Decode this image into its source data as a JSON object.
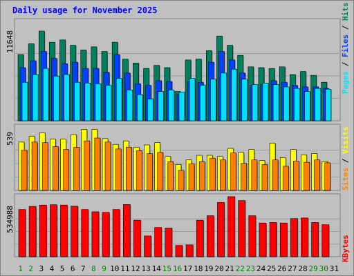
{
  "title": "Daily usage for November 2025",
  "colors": {
    "hits": "#00805c",
    "files": "#0040ff",
    "pages": "#00e0ff",
    "visits": "#ffff00",
    "sites": "#ff8000",
    "kbytes": "#ff0000",
    "day_normal": "#008040",
    "day_weekend": "#008000",
    "day_text": "#000000",
    "title": "#0000ff"
  },
  "chart_data": [
    {
      "type": "bar",
      "panel": "hits-files-pages",
      "y_max_label": "11648",
      "ylim": [
        0,
        11648
      ],
      "legend": {
        "pages": "Pages",
        "files": "Files",
        "hits": "Hits",
        "sep": " / "
      },
      "categories": [
        "1",
        "2",
        "3",
        "4",
        "5",
        "6",
        "7",
        "8",
        "9",
        "10",
        "11",
        "12",
        "13",
        "14",
        "15",
        "16",
        "17",
        "18",
        "19",
        "20",
        "21",
        "22",
        "23",
        "24",
        "25",
        "26",
        "27",
        "28",
        "29",
        "30"
      ],
      "series": [
        {
          "name": "Hits",
          "values": [
            8600,
            10000,
            11648,
            10200,
            10500,
            9800,
            9200,
            9600,
            9000,
            10200,
            8000,
            7500,
            6800,
            7200,
            6900,
            3800,
            7900,
            8000,
            9100,
            11000,
            9800,
            8500,
            7000,
            6900,
            6800,
            7000,
            6000,
            6400,
            5900,
            5000
          ]
        },
        {
          "name": "Files",
          "values": [
            6900,
            7800,
            9000,
            8100,
            7400,
            7600,
            6800,
            6800,
            6300,
            8600,
            6200,
            4800,
            4600,
            5200,
            5100,
            3400,
            5100,
            5000,
            7600,
            9000,
            7900,
            6200,
            4600,
            4700,
            5200,
            5000,
            4600,
            4400,
            4400,
            4200
          ]
        },
        {
          "name": "Pages",
          "values": [
            5000,
            6000,
            6800,
            5800,
            6000,
            5000,
            4900,
            4800,
            4600,
            5500,
            4000,
            3400,
            2800,
            3800,
            4000,
            3700,
            5500,
            4600,
            5400,
            6200,
            6700,
            5400,
            4700,
            4900,
            4700,
            4400,
            4200,
            3800,
            4200,
            4100
          ]
        }
      ]
    },
    {
      "type": "bar",
      "panel": "visits-sites",
      "y_max_label": "539",
      "ylim": [
        0,
        539
      ],
      "legend": {
        "sites": "Sites",
        "visits": "Visits",
        "sep": " / "
      },
      "categories": [
        "1",
        "2",
        "3",
        "4",
        "5",
        "6",
        "7",
        "8",
        "9",
        "10",
        "11",
        "12",
        "13",
        "14",
        "15",
        "16",
        "17",
        "18",
        "19",
        "20",
        "21",
        "22",
        "23",
        "24",
        "25",
        "26",
        "27",
        "28",
        "29",
        "30"
      ],
      "series": [
        {
          "name": "Visits",
          "values": [
            420,
            470,
            500,
            445,
            445,
            485,
            530,
            530,
            450,
            400,
            430,
            375,
            395,
            415,
            295,
            225,
            265,
            305,
            305,
            295,
            365,
            330,
            355,
            260,
            410,
            285,
            355,
            310,
            320,
            250
          ]
        },
        {
          "name": "Sites",
          "values": [
            350,
            420,
            415,
            380,
            355,
            375,
            430,
            455,
            420,
            360,
            375,
            345,
            320,
            330,
            250,
            175,
            230,
            250,
            280,
            265,
            325,
            235,
            265,
            225,
            265,
            210,
            255,
            245,
            265,
            240
          ]
        }
      ]
    },
    {
      "type": "bar",
      "panel": "kbytes",
      "y_max_label": "534988",
      "ylim": [
        0,
        534988
      ],
      "legend": {
        "kbytes": "KBytes"
      },
      "categories": [
        "1",
        "2",
        "3",
        "4",
        "5",
        "6",
        "7",
        "8",
        "9",
        "10",
        "11",
        "12",
        "13",
        "14",
        "15",
        "16",
        "17",
        "18",
        "19",
        "20",
        "21",
        "22",
        "23",
        "24",
        "25",
        "26",
        "27",
        "28",
        "29",
        "30"
      ],
      "series": [
        {
          "name": "KBytes",
          "values": [
            420000,
            448000,
            460000,
            463000,
            460000,
            450000,
            420000,
            400000,
            395000,
            420000,
            465000,
            325000,
            185000,
            260000,
            255000,
            100000,
            105000,
            325000,
            365000,
            483000,
            534988,
            500000,
            365000,
            300000,
            305000,
            300000,
            340000,
            345000,
            305000,
            285000
          ]
        }
      ]
    }
  ],
  "x_labels": [
    "1",
    "2",
    "3",
    "4",
    "5",
    "6",
    "7",
    "8",
    "9",
    "10",
    "11",
    "12",
    "13",
    "14",
    "15",
    "16",
    "17",
    "18",
    "19",
    "20",
    "21",
    "22",
    "23",
    "24",
    "25",
    "26",
    "27",
    "28",
    "29",
    "30",
    "31"
  ],
  "weekend_days": [
    "1",
    "2",
    "8",
    "9",
    "15",
    "16",
    "22",
    "23",
    "29",
    "30"
  ]
}
